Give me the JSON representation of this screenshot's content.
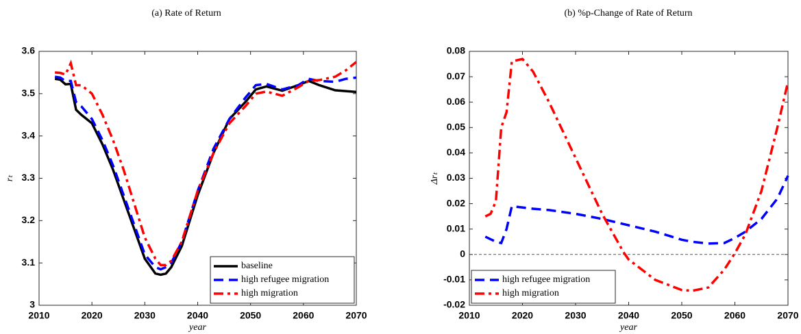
{
  "chart_data": [
    {
      "type": "line",
      "title": "(a) Rate of Return",
      "xlabel": "year",
      "ylabel": "rₜ",
      "x": [
        2013,
        2014,
        2015,
        2016,
        2017,
        2018,
        2020,
        2022,
        2024,
        2026,
        2028,
        2030,
        2032,
        2033,
        2034,
        2035,
        2037,
        2040,
        2043,
        2046,
        2049,
        2051,
        2053,
        2056,
        2059,
        2061,
        2063,
        2066,
        2068,
        2070
      ],
      "series": [
        {
          "name": "baseline",
          "color": "#000000",
          "dash": "solid",
          "values": [
            3.535,
            3.533,
            3.522,
            3.523,
            3.462,
            3.45,
            3.43,
            3.38,
            3.32,
            3.25,
            3.18,
            3.11,
            3.075,
            3.072,
            3.075,
            3.09,
            3.14,
            3.26,
            3.36,
            3.44,
            3.48,
            3.51,
            3.517,
            3.507,
            3.52,
            3.53,
            3.52,
            3.508,
            3.506,
            3.504
          ]
        },
        {
          "name": "high refugee migration",
          "color": "#0000ff",
          "dash": "dash",
          "values": [
            3.54,
            3.538,
            3.53,
            3.53,
            3.48,
            3.47,
            3.44,
            3.39,
            3.33,
            3.26,
            3.19,
            3.12,
            3.09,
            3.085,
            3.09,
            3.1,
            3.15,
            3.27,
            3.37,
            3.44,
            3.49,
            3.52,
            3.523,
            3.51,
            3.52,
            3.535,
            3.53,
            3.528,
            3.535,
            3.538
          ]
        },
        {
          "name": "high migration",
          "color": "#ff0000",
          "dash": "dashdot",
          "values": [
            3.55,
            3.549,
            3.545,
            3.572,
            3.52,
            3.52,
            3.5,
            3.45,
            3.39,
            3.32,
            3.24,
            3.16,
            3.11,
            3.095,
            3.095,
            3.105,
            3.15,
            3.27,
            3.36,
            3.43,
            3.47,
            3.5,
            3.505,
            3.495,
            3.515,
            3.53,
            3.532,
            3.54,
            3.555,
            3.575
          ]
        }
      ],
      "xlim": [
        2010,
        2070
      ],
      "xticks": [
        2010,
        2020,
        2030,
        2040,
        2050,
        2060,
        2070
      ],
      "ylim": [
        3,
        3.6
      ],
      "yticks": [
        3,
        3.1,
        3.2,
        3.3,
        3.4,
        3.5,
        3.6
      ],
      "legend": "lower-right"
    },
    {
      "type": "line",
      "title": "(b) %p-Change of Rate of Return",
      "xlabel": "year",
      "ylabel": "Δrₜ",
      "x": [
        2013,
        2014,
        2015,
        2016,
        2017,
        2018,
        2020,
        2022,
        2025,
        2030,
        2035,
        2039,
        2040,
        2045,
        2050,
        2052,
        2055,
        2058,
        2060,
        2062,
        2065,
        2068,
        2070
      ],
      "series": [
        {
          "name": "high refugee migration",
          "color": "#0000ff",
          "dash": "dash",
          "values": [
            0.007,
            0.006,
            0.005,
            0.0045,
            0.01,
            0.019,
            0.0185,
            0.018,
            0.0175,
            0.016,
            0.014,
            0.012,
            0.0115,
            0.009,
            0.0058,
            0.005,
            0.0043,
            0.0045,
            0.0065,
            0.009,
            0.014,
            0.022,
            0.031
          ]
        },
        {
          "name": "high migration",
          "color": "#ff0000",
          "dash": "dashdot",
          "values": [
            0.015,
            0.016,
            0.021,
            0.05,
            0.056,
            0.076,
            0.077,
            0.072,
            0.06,
            0.038,
            0.016,
            0.001,
            -0.002,
            -0.01,
            -0.014,
            -0.0143,
            -0.013,
            -0.006,
            0.0005,
            0.008,
            0.025,
            0.05,
            0.068
          ]
        }
      ],
      "hline": 0,
      "xlim": [
        2010,
        2070
      ],
      "xticks": [
        2010,
        2020,
        2030,
        2040,
        2050,
        2060,
        2070
      ],
      "ylim": [
        -0.02,
        0.08
      ],
      "yticks": [
        -0.02,
        -0.01,
        0,
        0.01,
        0.02,
        0.03,
        0.04,
        0.05,
        0.06,
        0.07,
        0.08
      ],
      "legend": "lower-left"
    }
  ]
}
